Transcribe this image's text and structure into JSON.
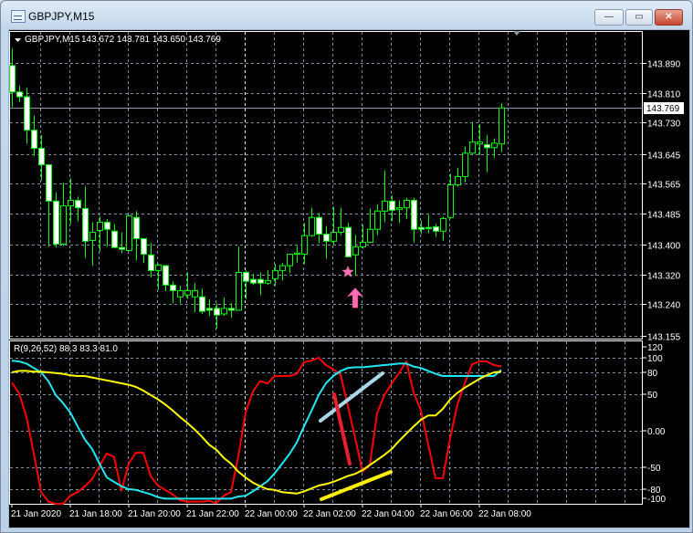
{
  "window": {
    "title": "GBPJPY,M15",
    "buttons": {
      "minimize": "—",
      "maximize": "▭",
      "close": "✕"
    }
  },
  "chart_data": [
    {
      "type": "candlestick",
      "title": "GBPJPY,M15",
      "ohlc_readout": "143.672 143.781 143.650 143.769",
      "current_price": "143.769",
      "grid": true,
      "colors": {
        "bull_body": "#000000",
        "bear_body": "#ffffff",
        "outline": "#00ff00",
        "background": "#000000",
        "grid": "#7c8ea2"
      },
      "price_axis": [
        "143.890",
        "143.810",
        "143.730",
        "143.645",
        "143.565",
        "143.485",
        "143.400",
        "143.320",
        "143.240",
        "143.155"
      ],
      "ylim": [
        143.155,
        143.955
      ],
      "candles_ohlc": [
        [
          143.883,
          143.929,
          143.772,
          143.812
        ],
        [
          143.812,
          143.829,
          143.785,
          143.799
        ],
        [
          143.799,
          143.824,
          143.672,
          143.709
        ],
        [
          143.709,
          143.748,
          143.64,
          143.66
        ],
        [
          143.66,
          143.696,
          143.574,
          143.616
        ],
        [
          143.616,
          143.616,
          143.395,
          143.518
        ],
        [
          143.518,
          143.542,
          143.393,
          143.402
        ],
        [
          143.402,
          143.567,
          143.397,
          143.505
        ],
        [
          143.505,
          143.579,
          143.456,
          143.52
        ],
        [
          143.52,
          143.53,
          143.464,
          143.5
        ],
        [
          143.498,
          143.557,
          143.365,
          143.41
        ],
        [
          143.412,
          143.461,
          143.344,
          143.434
        ],
        [
          143.439,
          143.476,
          143.383,
          143.461
        ],
        [
          143.461,
          143.469,
          143.395,
          143.442
        ],
        [
          143.437,
          143.456,
          143.39,
          143.393
        ],
        [
          143.393,
          143.434,
          143.378,
          143.388
        ],
        [
          143.385,
          143.481,
          143.383,
          143.478
        ],
        [
          143.474,
          143.491,
          143.358,
          143.417
        ],
        [
          143.417,
          143.417,
          143.351,
          143.375
        ],
        [
          143.373,
          143.405,
          143.312,
          143.331
        ],
        [
          143.331,
          143.349,
          143.28,
          143.346
        ],
        [
          143.344,
          143.346,
          143.275,
          143.292
        ],
        [
          143.292,
          143.302,
          143.243,
          143.277
        ],
        [
          143.26,
          143.29,
          143.243,
          143.277
        ],
        [
          143.265,
          143.326,
          143.255,
          143.277
        ],
        [
          143.26,
          143.297,
          143.219,
          143.277
        ],
        [
          143.26,
          143.282,
          143.214,
          143.221
        ],
        [
          143.229,
          143.253,
          143.209,
          143.224
        ],
        [
          143.229,
          143.243,
          143.175,
          143.211
        ],
        [
          143.214,
          143.258,
          143.209,
          143.229
        ],
        [
          143.229,
          143.243,
          143.204,
          143.224
        ],
        [
          143.224,
          143.395,
          143.224,
          143.326
        ],
        [
          143.326,
          143.331,
          143.255,
          143.302
        ],
        [
          143.307,
          143.322,
          143.292,
          143.297
        ],
        [
          143.307,
          143.326,
          143.265,
          143.297
        ],
        [
          143.297,
          143.331,
          143.292,
          143.304
        ],
        [
          143.309,
          143.349,
          143.29,
          143.331
        ],
        [
          143.331,
          143.351,
          143.304,
          143.344
        ],
        [
          143.344,
          143.375,
          143.324,
          143.375
        ],
        [
          143.375,
          143.397,
          143.353,
          143.378
        ],
        [
          143.375,
          143.459,
          143.349,
          143.425
        ],
        [
          143.425,
          143.5,
          143.422,
          143.474
        ],
        [
          143.474,
          143.486,
          143.405,
          143.429
        ],
        [
          143.429,
          143.451,
          143.363,
          143.41
        ],
        [
          143.41,
          143.503,
          143.4,
          143.434
        ],
        [
          143.434,
          143.5,
          143.427,
          143.447
        ],
        [
          143.447,
          143.459,
          143.368,
          143.368
        ],
        [
          143.373,
          143.427,
          143.319,
          143.395
        ],
        [
          143.395,
          143.454,
          143.39,
          143.407
        ],
        [
          143.407,
          143.498,
          143.405,
          143.442
        ],
        [
          143.442,
          143.51,
          143.427,
          143.491
        ],
        [
          143.491,
          143.601,
          143.461,
          143.518
        ],
        [
          143.518,
          143.533,
          143.464,
          143.493
        ],
        [
          143.496,
          143.52,
          143.459,
          143.5
        ],
        [
          143.5,
          143.527,
          143.471,
          143.52
        ],
        [
          143.52,
          143.527,
          143.407,
          143.442
        ],
        [
          143.447,
          143.466,
          143.429,
          143.442
        ],
        [
          143.447,
          143.481,
          143.432,
          143.444
        ],
        [
          143.449,
          143.456,
          143.422,
          143.437
        ],
        [
          143.437,
          143.476,
          143.412,
          143.471
        ],
        [
          143.474,
          143.591,
          143.471,
          143.562
        ],
        [
          143.562,
          143.608,
          143.557,
          143.584
        ],
        [
          143.584,
          143.665,
          143.569,
          143.647
        ],
        [
          143.647,
          143.731,
          143.643,
          143.677
        ],
        [
          143.672,
          143.726,
          143.643,
          143.677
        ],
        [
          143.67,
          143.696,
          143.596,
          143.662
        ],
        [
          143.662,
          143.687,
          143.635,
          143.674
        ],
        [
          143.672,
          143.781,
          143.65,
          143.769
        ]
      ],
      "markers": [
        {
          "type": "star-icon",
          "candle": 46,
          "price": 143.327,
          "color": "#ff6eb4"
        },
        {
          "type": "arrow-up-icon",
          "candle": 47,
          "price": 143.26,
          "color": "#ff6eb4"
        }
      ]
    },
    {
      "type": "line",
      "title": "R(9,26,52) 88.3 83.3 81.0",
      "ylim": [
        -100,
        120
      ],
      "y_axis": [
        {
          "v": 120,
          "t": "120"
        },
        {
          "v": 100,
          "t": "100"
        },
        {
          "v": 80,
          "t": "80"
        },
        {
          "v": 50,
          "t": "50"
        },
        {
          "v": 0,
          "t": "0.00"
        },
        {
          "v": -50,
          "t": "-50"
        },
        {
          "v": -80,
          "t": "-80"
        },
        {
          "v": -100,
          "t": "-100"
        }
      ],
      "grid_levels": [
        100,
        80,
        50,
        0,
        -50,
        -80
      ],
      "series": [
        {
          "color": "#ff0000",
          "values": [
            66,
            51,
            19,
            -31,
            -84,
            -97,
            -100,
            -100,
            -89,
            -84,
            -76,
            -66,
            -48,
            -31,
            -36,
            -82,
            -45,
            -30,
            -30,
            -62,
            -75,
            -81,
            -87,
            -95,
            -97,
            -97,
            -97,
            -96,
            -99,
            -89,
            -84,
            -35,
            25,
            54,
            68,
            65,
            75,
            75,
            75,
            78,
            94,
            96,
            100,
            90,
            84,
            77,
            34,
            -10,
            -56,
            -47,
            24,
            49,
            65,
            79,
            95,
            52,
            28,
            -19,
            -65,
            -65,
            -10,
            36,
            65,
            91,
            95,
            95,
            90,
            88.3
          ]
        },
        {
          "color": "#20e8f0",
          "values": [
            96,
            95,
            92,
            86,
            80,
            68,
            49,
            38,
            25,
            6,
            -12,
            -25,
            -45,
            -64,
            -70,
            -76,
            -80,
            -81,
            -84,
            -87,
            -91,
            -93,
            -93,
            -93,
            -93,
            -93,
            -93,
            -93,
            -93,
            -93,
            -93,
            -90,
            -89,
            -83,
            -76,
            -69,
            -58,
            -45,
            -32,
            -16,
            6,
            27,
            49,
            65,
            75,
            82,
            86,
            87,
            87,
            88,
            89,
            90,
            91,
            92,
            92,
            88,
            86,
            82,
            78,
            75,
            75,
            75,
            75,
            75,
            75,
            75,
            75,
            83.3
          ]
        },
        {
          "color": "#ffff00",
          "values": [
            80,
            82,
            82,
            81,
            81,
            80,
            79,
            78,
            76,
            75,
            75,
            73,
            71,
            69,
            67,
            65,
            63,
            60,
            55,
            49,
            43,
            36,
            28,
            19,
            11,
            2,
            -8,
            -19,
            -26,
            -37,
            -45,
            -56,
            -64,
            -71,
            -76,
            -80,
            -81,
            -84,
            -85,
            -86,
            -83,
            -79,
            -75,
            -73,
            -70,
            -66,
            -62,
            -59,
            -54,
            -47,
            -40,
            -33,
            -25,
            -14,
            -4,
            6,
            15,
            21,
            21,
            30,
            43,
            52,
            59,
            65,
            71,
            76,
            80,
            81
          ]
        }
      ]
    }
  ],
  "time_axis": [
    {
      "candle": 0,
      "t": "21 Jan 2020"
    },
    {
      "candle": 8,
      "t": "21 Jan 18:00"
    },
    {
      "candle": 16,
      "t": "21 Jan 20:00"
    },
    {
      "candle": 24,
      "t": "21 Jan 22:00"
    },
    {
      "candle": 32,
      "t": "22 Jan 00:00"
    },
    {
      "candle": 40,
      "t": "22 Jan 02:00"
    },
    {
      "candle": 48,
      "t": "22 Jan 04:00"
    },
    {
      "candle": 56,
      "t": "22 Jan 06:00"
    },
    {
      "candle": 64,
      "t": "22 Jan 08:00"
    }
  ],
  "drawings": [
    {
      "name": "trendline-lightblue",
      "color": "#a8d8e8"
    },
    {
      "name": "trendline-red",
      "color": "#e8202e"
    },
    {
      "name": "trendline-yellow",
      "color": "#ffee00"
    }
  ]
}
